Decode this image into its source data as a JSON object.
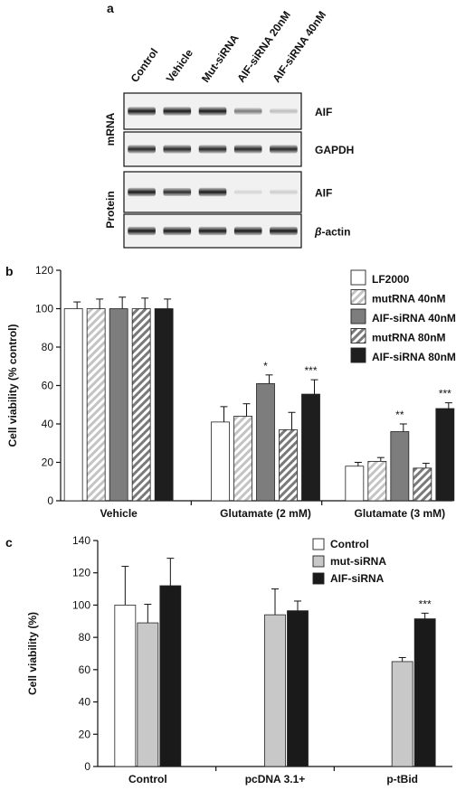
{
  "panel_a": {
    "label": "a",
    "lanes": [
      "Control",
      "Vehicle",
      "Mut-siRNA",
      "AIF-siRNA 20nM",
      "AIF-siRNA 40nM"
    ],
    "group_labels": [
      "mRNA",
      "Protein"
    ],
    "blots": [
      {
        "label": "AIF",
        "group": 0,
        "intensity": [
          0.9,
          0.9,
          0.9,
          0.5,
          0.22
        ]
      },
      {
        "label": "GAPDH",
        "group": 0,
        "intensity": [
          0.85,
          0.85,
          0.85,
          0.85,
          0.85
        ]
      },
      {
        "label": "AIF",
        "group": 1,
        "intensity": [
          0.9,
          0.82,
          0.9,
          0.12,
          0.15
        ]
      },
      {
        "label_prefix": "β",
        "label": "-actin",
        "group": 1,
        "intensity": [
          0.9,
          0.9,
          0.9,
          0.9,
          0.9
        ]
      }
    ]
  },
  "chart_data": [
    {
      "panel": "b",
      "type": "bar",
      "ylabel": "Cell viability (% control)",
      "ylim": [
        0,
        120
      ],
      "yticks": [
        0,
        20,
        40,
        60,
        80,
        100,
        120
      ],
      "categories": [
        "Vehicle",
        "Glutamate (2 mM)",
        "Glutamate (3 mM)"
      ],
      "legend_position": "top-right",
      "series": [
        {
          "name": "LF2000",
          "color": "#ffffff",
          "pattern": "none",
          "values": [
            100,
            41,
            18
          ],
          "errors": [
            3.5,
            8,
            2
          ]
        },
        {
          "name": "mutRNA 40nM",
          "color": "#c8c8c8",
          "pattern": "hatch-light",
          "values": [
            100,
            44,
            20.5
          ],
          "errors": [
            5,
            6.5,
            2
          ]
        },
        {
          "name": "AIF-siRNA 40nM",
          "color": "#7d7d7d",
          "pattern": "none",
          "values": [
            100,
            61,
            36
          ],
          "errors": [
            6,
            4.5,
            4
          ]
        },
        {
          "name": "mutRNA 80nM",
          "color": "#8a8a8a",
          "pattern": "hatch-dark",
          "values": [
            100,
            37,
            17
          ],
          "errors": [
            5.5,
            9,
            2.5
          ]
        },
        {
          "name": "AIF-siRNA 80nM",
          "color": "#1e1e1e",
          "pattern": "none",
          "values": [
            100,
            55.5,
            48
          ],
          "errors": [
            5,
            7.5,
            3
          ]
        }
      ],
      "significance": [
        {
          "category": 1,
          "series": 2,
          "text": "*"
        },
        {
          "category": 1,
          "series": 4,
          "text": "***"
        },
        {
          "category": 2,
          "series": 2,
          "text": "**"
        },
        {
          "category": 2,
          "series": 4,
          "text": "***"
        }
      ]
    },
    {
      "panel": "c",
      "type": "bar",
      "ylabel": "Cell viability (%)",
      "ylim": [
        0,
        140
      ],
      "yticks": [
        0,
        20,
        40,
        60,
        80,
        100,
        120,
        140
      ],
      "categories": [
        "Control",
        "pcDNA 3.1+",
        "p-tBid"
      ],
      "legend_position": "top-right",
      "series": [
        {
          "name": "Control",
          "color": "#ffffff",
          "values": [
            100,
            null,
            null
          ],
          "errors": [
            24,
            null,
            null
          ]
        },
        {
          "name": "mut-siRNA",
          "color": "#c8c8c8",
          "values": [
            89,
            94,
            65
          ],
          "errors": [
            11.5,
            16,
            2.5
          ]
        },
        {
          "name": "AIF-siRNA",
          "color": "#1a1a1a",
          "values": [
            112,
            96.5,
            91.5
          ],
          "errors": [
            17,
            6,
            3.5
          ]
        }
      ],
      "significance": [
        {
          "category": 2,
          "series": 2,
          "text": "***"
        }
      ]
    }
  ]
}
